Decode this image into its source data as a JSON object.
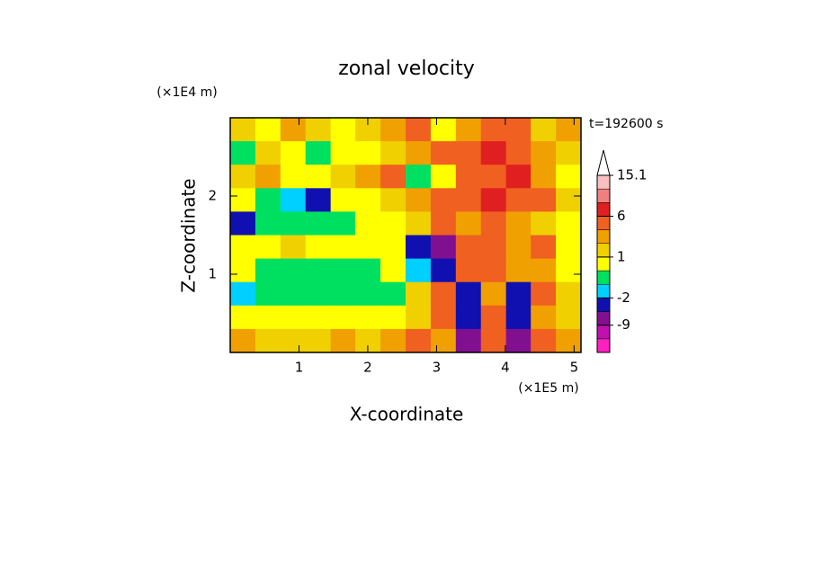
{
  "chart_data": {
    "type": "contour",
    "title": "zonal velocity",
    "x_label": "X-coordinate",
    "y_label": "Z-coordinate",
    "x_unit": "(×1E5 m)",
    "y_unit": "(×1E4 m)",
    "annotation": "t=192600 s",
    "xlim": [
      0,
      5.1
    ],
    "ylim": [
      0,
      3
    ],
    "xticks": [
      1,
      2,
      3,
      4,
      5
    ],
    "yticks": [
      1,
      2
    ],
    "z_x": [
      0.18,
      0.55,
      0.91,
      1.28,
      1.64,
      2.0,
      2.37,
      2.73,
      3.1,
      3.46,
      3.83,
      4.19,
      4.55,
      4.92
    ],
    "z_y": [
      2.85,
      2.55,
      2.25,
      1.95,
      1.65,
      1.35,
      1.05,
      0.75,
      0.45,
      0.15
    ],
    "z": [
      [
        1,
        0.5,
        2,
        1,
        0.5,
        1,
        2,
        3,
        0.5,
        2,
        4,
        3,
        1,
        2
      ],
      [
        -0.5,
        1,
        0.5,
        -1,
        0.5,
        0.5,
        1,
        2,
        3,
        4,
        6,
        3,
        2,
        1
      ],
      [
        1,
        2,
        0.5,
        0.5,
        1,
        2,
        3,
        -0.5,
        0.5,
        4,
        3,
        6,
        2,
        0.5
      ],
      [
        0.5,
        -0.5,
        -1.5,
        -4,
        0.5,
        0.5,
        1,
        2,
        4,
        3,
        6,
        4,
        3,
        1
      ],
      [
        -3,
        -0.5,
        -0.5,
        -1,
        -0.5,
        0.5,
        0.5,
        1,
        3,
        2,
        4,
        2,
        1,
        0.5
      ],
      [
        0.5,
        0.5,
        1,
        0.5,
        0.5,
        0.5,
        0.5,
        -3,
        -8,
        4,
        3,
        2,
        3,
        0.5
      ],
      [
        0.5,
        -0.5,
        -0.5,
        -0.5,
        -0.5,
        -0.5,
        0.5,
        -2,
        -6,
        4,
        3,
        2,
        2,
        0.5
      ],
      [
        -1.5,
        -0.5,
        -0.5,
        -0.5,
        -0.5,
        -0.5,
        -0.5,
        1,
        3,
        -4,
        2,
        -3,
        3,
        1
      ],
      [
        0.5,
        0.5,
        0.5,
        0.5,
        0.5,
        0.5,
        0.5,
        1,
        3,
        -6,
        4,
        -4,
        2,
        1
      ],
      [
        2,
        1,
        1,
        1,
        2,
        1,
        2,
        3,
        2,
        -9,
        3,
        -9,
        3,
        2
      ]
    ],
    "levels": [
      -15,
      -12,
      -9,
      -6,
      -2,
      -1,
      0,
      1,
      2,
      3,
      6,
      9,
      12,
      15.1
    ],
    "level_colors": [
      "#ff20c0",
      "#c010b0",
      "#801090",
      "#1010b0",
      "#00d0ff",
      "#00e060",
      "#ffff00",
      "#f0d000",
      "#f0a000",
      "#f06020",
      "#e02020",
      "#f08080",
      "#f8c0c0"
    ],
    "colorbar_ticks": [
      15.1,
      6,
      1,
      -2,
      -9
    ]
  }
}
